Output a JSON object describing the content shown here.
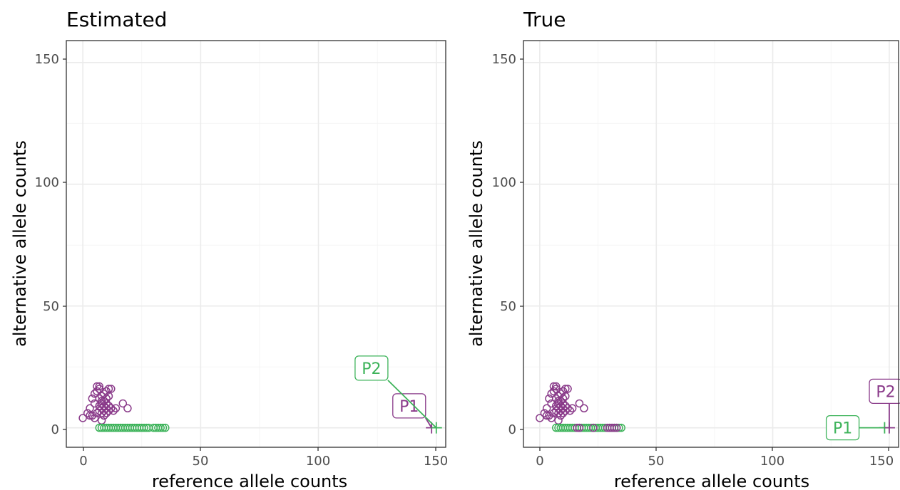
{
  "colors": {
    "purple": "#8a3b8a",
    "green": "#3db35a",
    "panel_border": "#333333",
    "grid": "#ebebeb",
    "tick_text": "#4d4d4d"
  },
  "chart_data": [
    {
      "type": "scatter",
      "title": "Estimated",
      "xlabel": "reference allele counts",
      "ylabel": "alternative allele counts",
      "xlim": [
        -7,
        154
      ],
      "ylim": [
        -8,
        159
      ],
      "xticks": [
        0,
        50,
        100,
        150
      ],
      "yticks": [
        0,
        50,
        100,
        150
      ],
      "grid": true,
      "series": [
        {
          "color": "#8a3b8a",
          "marker": "circle",
          "points": [
            [
              0,
              4
            ],
            [
              2,
              6
            ],
            [
              3,
              5
            ],
            [
              3,
              8
            ],
            [
              4,
              5
            ],
            [
              4,
              12
            ],
            [
              5,
              4
            ],
            [
              5,
              10
            ],
            [
              5,
              14
            ],
            [
              6,
              6
            ],
            [
              6,
              15
            ],
            [
              6,
              17
            ],
            [
              7,
              7
            ],
            [
              7,
              9
            ],
            [
              7,
              12
            ],
            [
              7,
              16
            ],
            [
              7,
              17
            ],
            [
              8,
              3
            ],
            [
              8,
              6
            ],
            [
              8,
              8
            ],
            [
              8,
              10
            ],
            [
              8,
              11
            ],
            [
              8,
              13
            ],
            [
              9,
              5
            ],
            [
              9,
              7
            ],
            [
              9,
              9
            ],
            [
              9,
              11
            ],
            [
              9,
              14
            ],
            [
              10,
              6
            ],
            [
              10,
              8
            ],
            [
              10,
              10
            ],
            [
              10,
              12
            ],
            [
              10,
              15
            ],
            [
              11,
              7
            ],
            [
              11,
              9
            ],
            [
              11,
              13
            ],
            [
              11,
              16
            ],
            [
              12,
              8
            ],
            [
              12,
              16
            ],
            [
              13,
              7
            ],
            [
              14,
              8
            ],
            [
              17,
              10
            ],
            [
              19,
              8
            ]
          ]
        },
        {
          "color": "#3db35a",
          "marker": "circle",
          "points": [
            [
              7,
              0
            ],
            [
              8,
              0
            ],
            [
              9,
              0
            ],
            [
              10,
              0
            ],
            [
              11,
              0
            ],
            [
              12,
              0
            ],
            [
              13,
              0
            ],
            [
              14,
              0
            ],
            [
              15,
              0
            ],
            [
              16,
              0
            ],
            [
              17,
              0
            ],
            [
              18,
              0
            ],
            [
              19,
              0
            ],
            [
              20,
              0
            ],
            [
              21,
              0
            ],
            [
              22,
              0
            ],
            [
              23,
              0
            ],
            [
              24,
              0
            ],
            [
              25,
              0
            ],
            [
              26,
              0
            ],
            [
              27,
              0
            ],
            [
              28,
              0
            ],
            [
              30,
              0
            ],
            [
              31,
              0
            ],
            [
              32,
              0
            ],
            [
              33,
              0
            ],
            [
              34,
              0
            ],
            [
              35,
              0
            ]
          ]
        },
        {
          "name": "P1",
          "color": "#8a3b8a",
          "marker": "plus",
          "points": [
            [
              148,
              0
            ]
          ]
        },
        {
          "name": "P2",
          "color": "#3db35a",
          "marker": "plus",
          "points": [
            [
              150,
              0
            ]
          ]
        }
      ],
      "labels": [
        {
          "text": "P1",
          "color": "#8a3b8a",
          "x": 148,
          "y": 0,
          "tx": 138.5,
          "ty": 9
        },
        {
          "text": "P2",
          "color": "#3db35a",
          "x": 150,
          "y": 0,
          "tx": 122.5,
          "ty": 24.5
        }
      ]
    },
    {
      "type": "scatter",
      "title": "True",
      "xlabel": "reference allele counts",
      "ylabel": "alternative allele counts",
      "xlim": [
        -7,
        154
      ],
      "ylim": [
        -8,
        159
      ],
      "xticks": [
        0,
        50,
        100,
        150
      ],
      "yticks": [
        0,
        50,
        100,
        150
      ],
      "grid": true,
      "series": [
        {
          "color": "#8a3b8a",
          "marker": "circle",
          "points": [
            [
              0,
              4
            ],
            [
              2,
              6
            ],
            [
              3,
              5
            ],
            [
              3,
              8
            ],
            [
              4,
              5
            ],
            [
              4,
              12
            ],
            [
              5,
              4
            ],
            [
              5,
              10
            ],
            [
              5,
              14
            ],
            [
              6,
              6
            ],
            [
              6,
              15
            ],
            [
              6,
              17
            ],
            [
              7,
              7
            ],
            [
              7,
              9
            ],
            [
              7,
              12
            ],
            [
              7,
              16
            ],
            [
              7,
              17
            ],
            [
              8,
              3
            ],
            [
              8,
              6
            ],
            [
              8,
              8
            ],
            [
              8,
              10
            ],
            [
              8,
              11
            ],
            [
              8,
              13
            ],
            [
              9,
              5
            ],
            [
              9,
              7
            ],
            [
              9,
              9
            ],
            [
              9,
              11
            ],
            [
              9,
              14
            ],
            [
              10,
              6
            ],
            [
              10,
              8
            ],
            [
              10,
              10
            ],
            [
              10,
              12
            ],
            [
              10,
              15
            ],
            [
              11,
              7
            ],
            [
              11,
              9
            ],
            [
              11,
              13
            ],
            [
              11,
              16
            ],
            [
              12,
              8
            ],
            [
              12,
              16
            ],
            [
              13,
              7
            ],
            [
              14,
              8
            ],
            [
              17,
              10
            ],
            [
              19,
              8
            ]
          ]
        },
        {
          "color": "#3db35a",
          "marker": "circle",
          "points": [
            [
              7,
              0
            ],
            [
              8,
              0
            ],
            [
              9,
              0
            ],
            [
              10,
              0
            ],
            [
              11,
              0
            ],
            [
              12,
              0
            ],
            [
              13,
              0
            ],
            [
              14,
              0
            ],
            [
              15,
              0
            ],
            [
              17,
              0
            ],
            [
              18,
              0
            ],
            [
              19,
              0
            ],
            [
              20,
              0
            ],
            [
              21,
              0
            ],
            [
              22,
              0
            ],
            [
              23,
              0
            ],
            [
              24,
              0
            ],
            [
              25,
              0
            ],
            [
              26,
              0
            ],
            [
              27,
              0
            ],
            [
              28,
              0
            ],
            [
              30,
              0
            ],
            [
              31,
              0
            ],
            [
              32,
              0
            ],
            [
              33,
              0
            ],
            [
              34,
              0
            ],
            [
              35,
              0
            ]
          ]
        },
        {
          "color": "#8a3b8a",
          "marker": "circle",
          "points": [
            [
              16,
              0
            ],
            [
              17,
              0
            ],
            [
              23,
              0
            ],
            [
              29,
              0
            ],
            [
              30,
              0
            ],
            [
              31,
              0
            ],
            [
              32,
              0
            ],
            [
              33,
              0
            ]
          ]
        },
        {
          "name": "P1",
          "color": "#3db35a",
          "marker": "plus",
          "points": [
            [
              148,
              0
            ]
          ]
        },
        {
          "name": "P2",
          "color": "#8a3b8a",
          "marker": "plus",
          "points": [
            [
              150,
              0
            ]
          ]
        }
      ],
      "labels": [
        {
          "text": "P1",
          "color": "#3db35a",
          "x": 148,
          "y": 0,
          "tx": 130,
          "ty": 0
        },
        {
          "text": "P2",
          "color": "#8a3b8a",
          "x": 150,
          "y": 0,
          "tx": 148.5,
          "ty": 15
        }
      ]
    }
  ]
}
